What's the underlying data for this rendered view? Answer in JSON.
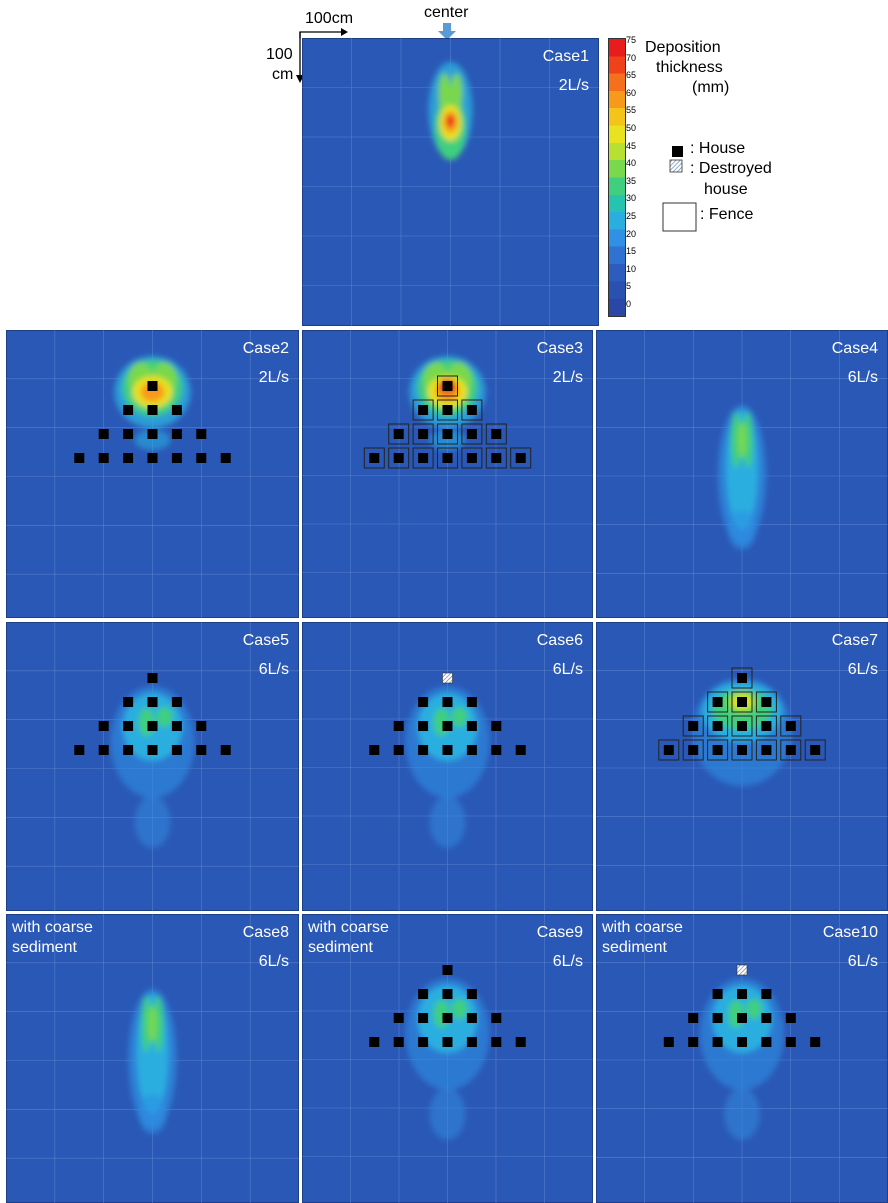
{
  "annotations": {
    "scale_x": "100cm",
    "scale_y_top": "100",
    "scale_y_bottom": "cm",
    "center": "center"
  },
  "colorbar": {
    "title_1": "Deposition",
    "title_2": "thickness",
    "title_3": "(mm)",
    "ticks": [
      "75",
      "70",
      "65",
      "60",
      "55",
      "50",
      "45",
      "40",
      "35",
      "30",
      "25",
      "20",
      "15",
      "10",
      "5",
      "0"
    ],
    "colors": [
      "#e81c1c",
      "#f0421a",
      "#f5701c",
      "#f79a1c",
      "#f3c41a",
      "#e8e21f",
      "#b8e033",
      "#79d84c",
      "#3fcf7e",
      "#27c3b1",
      "#2aaedf",
      "#2f90e4",
      "#2f72d2",
      "#2c5cbe",
      "#2a50b0",
      "#2a47a8"
    ]
  },
  "legend": {
    "house": ": House",
    "destroyed_1": ": Destroyed",
    "destroyed_2": "house",
    "fence": ": Fence"
  },
  "panels": [
    {
      "case": "Case1",
      "flow": "2L/s",
      "note1": "",
      "note2": "",
      "layout": "none",
      "fence": false,
      "destroyed": false,
      "dep": "strong-single"
    },
    {
      "case": "Case2",
      "flow": "2L/s",
      "note1": "",
      "note2": "",
      "layout": "pyramid",
      "fence": false,
      "destroyed": false,
      "dep": "strong-wide"
    },
    {
      "case": "Case3",
      "flow": "2L/s",
      "note1": "",
      "note2": "",
      "layout": "pyramid",
      "fence": true,
      "destroyed": false,
      "dep": "strong-wide-red"
    },
    {
      "case": "Case4",
      "flow": "6L/s",
      "note1": "",
      "note2": "",
      "layout": "none",
      "fence": false,
      "destroyed": false,
      "dep": "long"
    },
    {
      "case": "Case5",
      "flow": "6L/s",
      "note1": "",
      "note2": "",
      "layout": "pyramid",
      "fence": false,
      "destroyed": false,
      "dep": "spread"
    },
    {
      "case": "Case6",
      "flow": "6L/s",
      "note1": "",
      "note2": "",
      "layout": "pyramid",
      "fence": false,
      "destroyed": true,
      "dep": "spread"
    },
    {
      "case": "Case7",
      "flow": "6L/s",
      "note1": "",
      "note2": "",
      "layout": "pyramid",
      "fence": true,
      "destroyed": false,
      "dep": "spread-strong"
    },
    {
      "case": "Case8",
      "flow": "6L/s",
      "note1": "with coarse",
      "note2": "sediment",
      "layout": "none",
      "fence": false,
      "destroyed": false,
      "dep": "long"
    },
    {
      "case": "Case9",
      "flow": "6L/s",
      "note1": "with coarse",
      "note2": "sediment",
      "layout": "pyramid",
      "fence": false,
      "destroyed": false,
      "dep": "spread"
    },
    {
      "case": "Case10",
      "flow": "6L/s",
      "note1": "with coarse",
      "note2": "sediment",
      "layout": "pyramid",
      "fence": false,
      "destroyed": true,
      "dep": "spread"
    }
  ]
}
